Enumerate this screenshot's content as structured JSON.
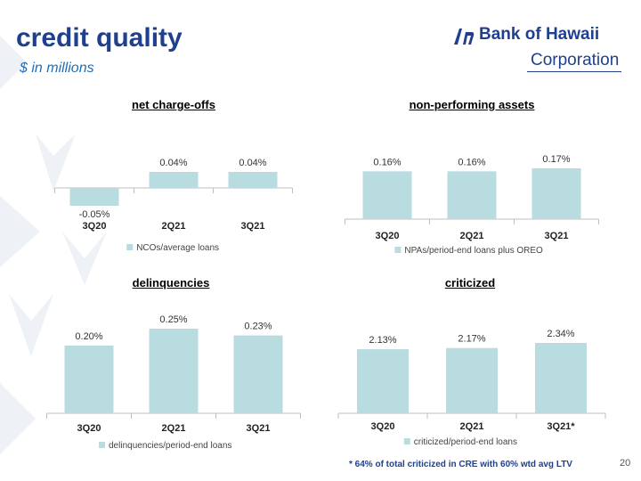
{
  "header": {
    "title": "credit quality",
    "subtitle": "$ in millions",
    "logo_main": "Bank of Hawaii",
    "logo_sub": "Corporation"
  },
  "footer": {
    "footnote": "* 64% of total criticized in CRE with 60% wtd avg LTV",
    "page_number": "20"
  },
  "colors": {
    "bar": "#b8dce0",
    "axis": "#bfbfbf",
    "title": "#1f3f8f"
  },
  "chart_data": [
    {
      "type": "bar",
      "title": "net charge-offs",
      "categories": [
        "3Q20",
        "2Q21",
        "3Q21"
      ],
      "series": [
        {
          "name": "NCOs/average loans",
          "values": [
            -0.05,
            0.04,
            0.04
          ]
        }
      ],
      "labels": [
        "-0.05%",
        "0.04%",
        "0.04%"
      ],
      "ylim": [
        -0.05,
        0.04
      ],
      "grid": false,
      "legend": "bottom"
    },
    {
      "type": "bar",
      "title": "non-performing assets",
      "categories": [
        "3Q20",
        "2Q21",
        "3Q21"
      ],
      "series": [
        {
          "name": "NPAs/period-end loans plus OREO",
          "values": [
            0.16,
            0.16,
            0.17
          ]
        }
      ],
      "labels": [
        "0.16%",
        "0.16%",
        "0.17%"
      ],
      "ylim": [
        0,
        0.17
      ],
      "grid": false,
      "legend": "bottom"
    },
    {
      "type": "bar",
      "title": "delinquencies",
      "categories": [
        "3Q20",
        "2Q21",
        "3Q21"
      ],
      "series": [
        {
          "name": "delinquencies/period-end loans",
          "values": [
            0.2,
            0.25,
            0.23
          ]
        }
      ],
      "labels": [
        "0.20%",
        "0.25%",
        "0.23%"
      ],
      "ylim": [
        0,
        0.25
      ],
      "grid": false,
      "legend": "bottom"
    },
    {
      "type": "bar",
      "title": "criticized",
      "categories": [
        "3Q20",
        "2Q21",
        "3Q21*"
      ],
      "series": [
        {
          "name": "criticized/period-end loans",
          "values": [
            2.13,
            2.17,
            2.34
          ]
        }
      ],
      "labels": [
        "2.13%",
        "2.17%",
        "2.34%"
      ],
      "ylim": [
        0,
        2.34
      ],
      "grid": false,
      "legend": "bottom"
    }
  ]
}
